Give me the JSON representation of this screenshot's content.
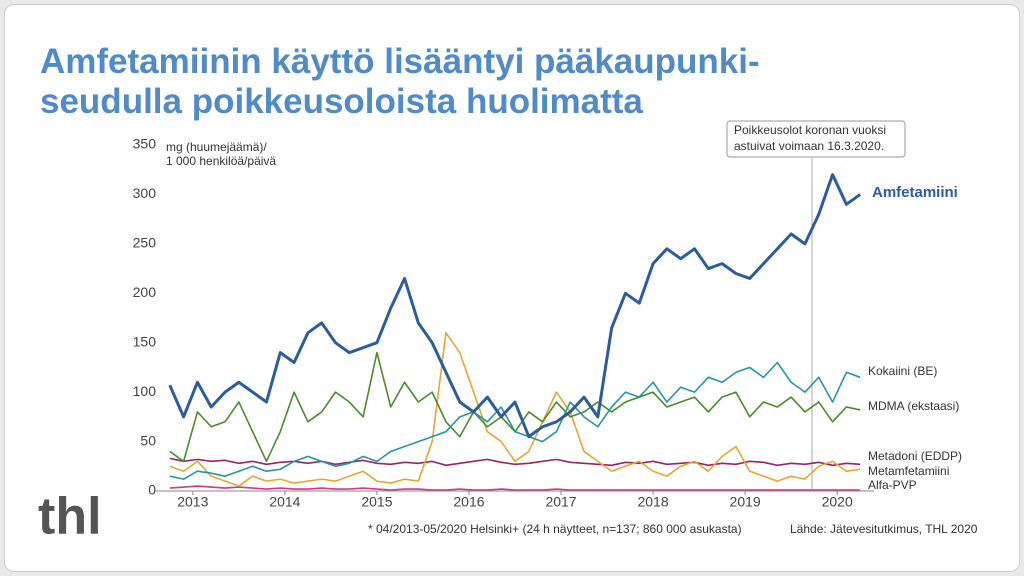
{
  "chart_data": {
    "type": "line",
    "title_lines": [
      "Amfetamiinin käyttö lisääntyi pääkaupunki-",
      "seudulla poikkeusoloista huolimatta"
    ],
    "y_label_lines": [
      "mg (huumejäämä)/",
      "1 000 henkilöä/päivä"
    ],
    "annotation_lines": [
      "Poikkeusolot koronan vuoksi",
      "astuivat voimaan 16.3.2020."
    ],
    "footnote": "* 04/2013-05/2020 Helsinki+ (24 h näytteet, n=137; 860 000 asukasta)",
    "source": "Lähde: Jätevesitutkimus, THL 2020",
    "logo": "thl",
    "x": [
      2013.25,
      2013.4,
      2013.55,
      2013.7,
      2013.85,
      2014,
      2014.15,
      2014.3,
      2014.45,
      2014.6,
      2014.75,
      2014.9,
      2015.05,
      2015.2,
      2015.35,
      2015.5,
      2015.65,
      2015.8,
      2015.95,
      2016.1,
      2016.25,
      2016.4,
      2016.55,
      2016.7,
      2016.85,
      2017,
      2017.15,
      2017.3,
      2017.45,
      2017.6,
      2017.75,
      2017.9,
      2018.05,
      2018.2,
      2018.35,
      2018.5,
      2018.65,
      2018.8,
      2018.95,
      2019.1,
      2019.25,
      2019.4,
      2019.55,
      2019.7,
      2019.85,
      2020,
      2020.15,
      2020.3,
      2020.45,
      2020.6,
      2020.75
    ],
    "xlim": [
      2013.1,
      2020.9
    ],
    "xticks": [
      {
        "value": 2013.5,
        "label": "2013"
      },
      {
        "value": 2014.5,
        "label": "2014"
      },
      {
        "value": 2015.5,
        "label": "2015"
      },
      {
        "value": 2016.5,
        "label": "2016"
      },
      {
        "value": 2017.5,
        "label": "2017"
      },
      {
        "value": 2018.5,
        "label": "2018"
      },
      {
        "value": 2019.5,
        "label": "2019"
      },
      {
        "value": 2020.5,
        "label": "2020"
      }
    ],
    "ylim": [
      0,
      350
    ],
    "yticks": [
      0,
      50,
      100,
      150,
      200,
      250,
      300,
      350
    ],
    "series": [
      {
        "name": "Metadoni (EDDP)",
        "color": "#9b2564",
        "values": [
          33,
          30,
          32,
          30,
          31,
          28,
          30,
          27,
          29,
          30,
          28,
          30,
          27,
          29,
          31,
          28,
          27,
          29,
          28,
          30,
          26,
          28,
          30,
          32,
          29,
          27,
          28,
          30,
          32,
          29,
          28,
          27,
          26,
          29,
          28,
          30,
          27,
          28,
          29,
          26,
          28,
          27,
          30,
          29,
          26,
          28,
          27,
          29,
          26,
          28,
          27
        ]
      },
      {
        "name": "Alfa-PVP",
        "color": "#c93d8b",
        "values": [
          3,
          4,
          5,
          4,
          3,
          4,
          3,
          2,
          3,
          2,
          2,
          3,
          2,
          2,
          3,
          2,
          1,
          2,
          2,
          1,
          1,
          2,
          1,
          1,
          2,
          1,
          1,
          1,
          2,
          1,
          1,
          1,
          1,
          1,
          1,
          1,
          1,
          1,
          1,
          1,
          1,
          1,
          1,
          1,
          1,
          1,
          1,
          1,
          1,
          1,
          1
        ]
      },
      {
        "name": "Metamfetamiini",
        "color": "#e8a532",
        "values": [
          25,
          20,
          30,
          15,
          10,
          5,
          15,
          10,
          12,
          8,
          10,
          12,
          10,
          15,
          20,
          10,
          8,
          12,
          10,
          50,
          160,
          140,
          100,
          60,
          50,
          30,
          40,
          70,
          100,
          80,
          40,
          30,
          20,
          25,
          30,
          20,
          15,
          25,
          30,
          20,
          35,
          45,
          20,
          15,
          10,
          15,
          12,
          25,
          30,
          20,
          22
        ]
      },
      {
        "name": "MDMA (ekstaasi)",
        "color": "#4a8c2a",
        "values": [
          40,
          30,
          80,
          65,
          70,
          90,
          60,
          30,
          60,
          100,
          70,
          80,
          100,
          90,
          75,
          140,
          85,
          110,
          90,
          100,
          70,
          55,
          80,
          65,
          75,
          60,
          80,
          70,
          90,
          75,
          80,
          90,
          80,
          90,
          95,
          100,
          85,
          90,
          95,
          80,
          95,
          100,
          75,
          90,
          85,
          95,
          80,
          90,
          70,
          85,
          82
        ]
      },
      {
        "name": "Kokaiini (BE)",
        "color": "#2596a8",
        "values": [
          15,
          12,
          20,
          18,
          15,
          20,
          25,
          20,
          22,
          30,
          35,
          30,
          25,
          28,
          35,
          30,
          40,
          45,
          50,
          55,
          60,
          75,
          80,
          70,
          85,
          60,
          55,
          50,
          60,
          90,
          75,
          65,
          85,
          100,
          95,
          110,
          90,
          105,
          100,
          115,
          110,
          120,
          125,
          115,
          130,
          110,
          100,
          115,
          90,
          120,
          115
        ]
      },
      {
        "name": "Amfetamiini",
        "color": "#2b5c9e",
        "values": [
          107,
          75,
          110,
          85,
          100,
          110,
          100,
          90,
          140,
          130,
          160,
          170,
          150,
          140,
          145,
          150,
          185,
          215,
          170,
          150,
          120,
          90,
          80,
          95,
          75,
          90,
          55,
          65,
          70,
          80,
          95,
          75,
          165,
          200,
          190,
          230,
          245,
          235,
          245,
          225,
          230,
          220,
          215,
          230,
          245,
          260,
          250,
          280,
          320,
          290,
          300
        ]
      }
    ]
  }
}
